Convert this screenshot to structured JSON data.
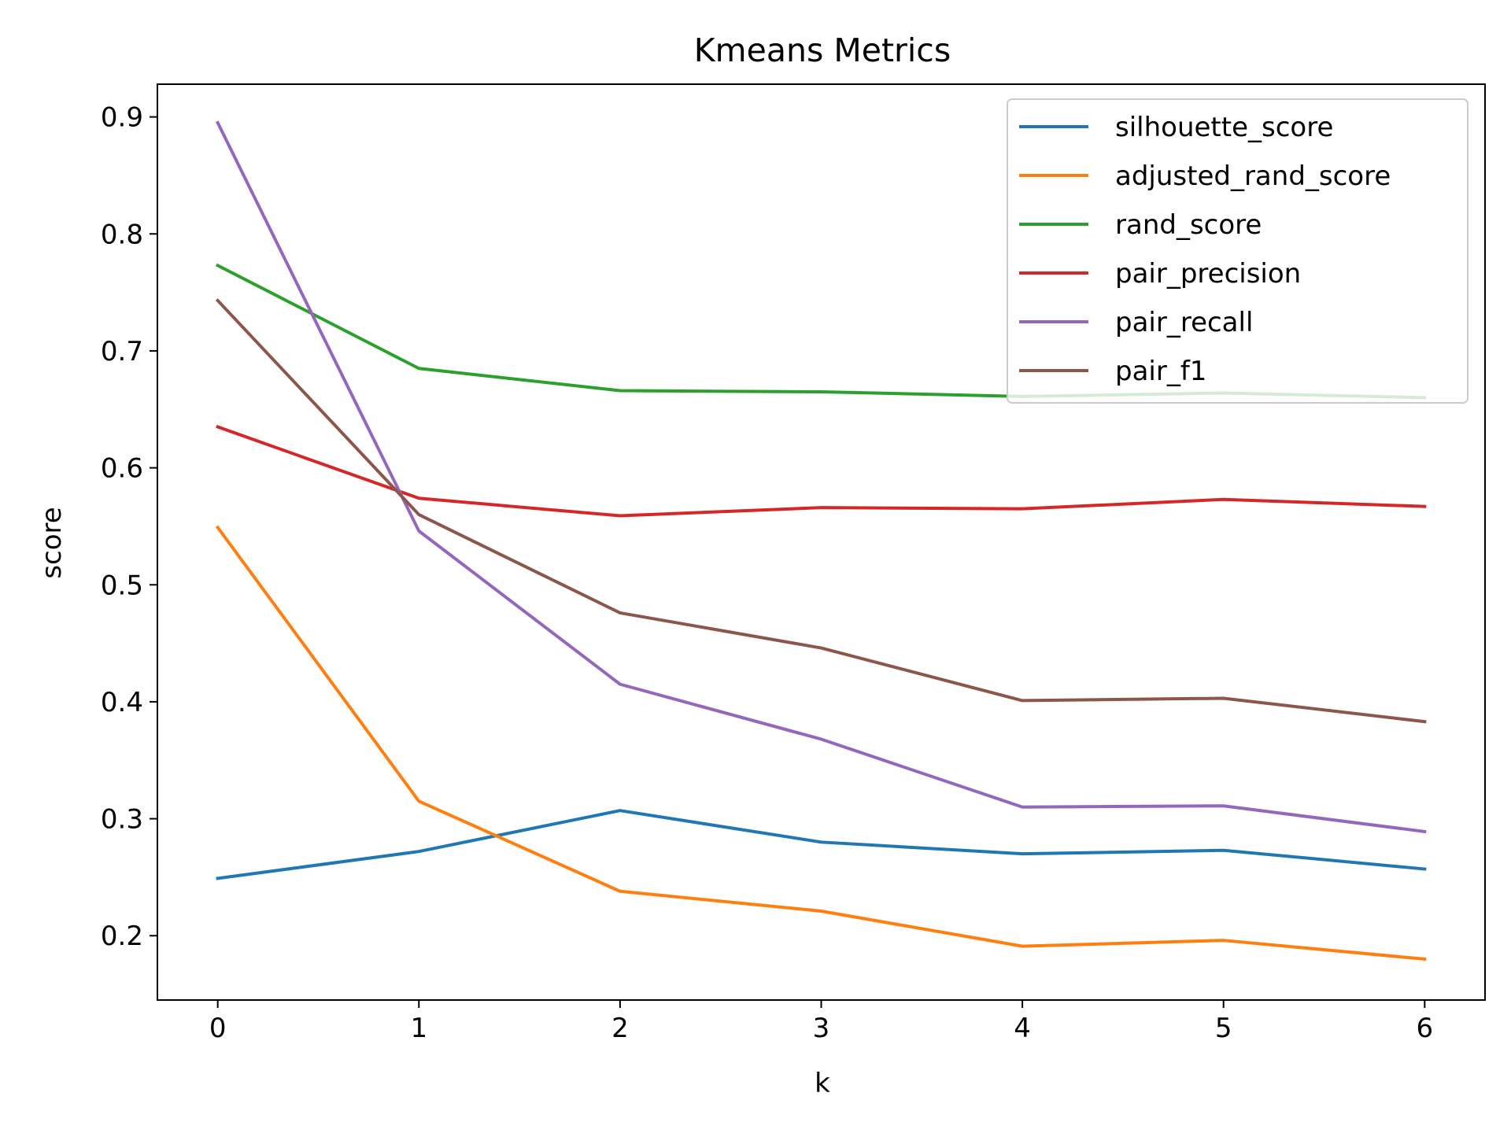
{
  "chart_data": {
    "type": "line",
    "title": "Kmeans Metrics",
    "xlabel": "k",
    "ylabel": "score",
    "x": [
      0,
      1,
      2,
      3,
      4,
      5,
      6
    ],
    "xlim": [
      -0.3,
      6.3
    ],
    "ylim": [
      0.145,
      0.928
    ],
    "xticks": [
      "0",
      "1",
      "2",
      "3",
      "4",
      "5",
      "6"
    ],
    "yticks": [
      "0.2",
      "0.3",
      "0.4",
      "0.5",
      "0.6",
      "0.7",
      "0.8",
      "0.9"
    ],
    "grid": false,
    "legend_position": "upper-right",
    "series": [
      {
        "name": "silhouette_score",
        "color": "#1f77b4",
        "values": [
          0.249,
          0.272,
          0.307,
          0.28,
          0.27,
          0.273,
          0.257
        ]
      },
      {
        "name": "adjusted_rand_score",
        "color": "#ff7f0e",
        "values": [
          0.549,
          0.315,
          0.238,
          0.221,
          0.191,
          0.196,
          0.18
        ]
      },
      {
        "name": "rand_score",
        "color": "#2ca02c",
        "values": [
          0.773,
          0.685,
          0.666,
          0.665,
          0.661,
          0.664,
          0.66
        ]
      },
      {
        "name": "pair_precision",
        "color": "#d62728",
        "values": [
          0.635,
          0.574,
          0.559,
          0.566,
          0.565,
          0.573,
          0.567
        ]
      },
      {
        "name": "pair_recall",
        "color": "#9467bd",
        "values": [
          0.895,
          0.546,
          0.415,
          0.368,
          0.31,
          0.311,
          0.289
        ]
      },
      {
        "name": "pair_f1",
        "color": "#8c564b",
        "values": [
          0.743,
          0.56,
          0.476,
          0.446,
          0.401,
          0.403,
          0.383
        ]
      }
    ]
  }
}
